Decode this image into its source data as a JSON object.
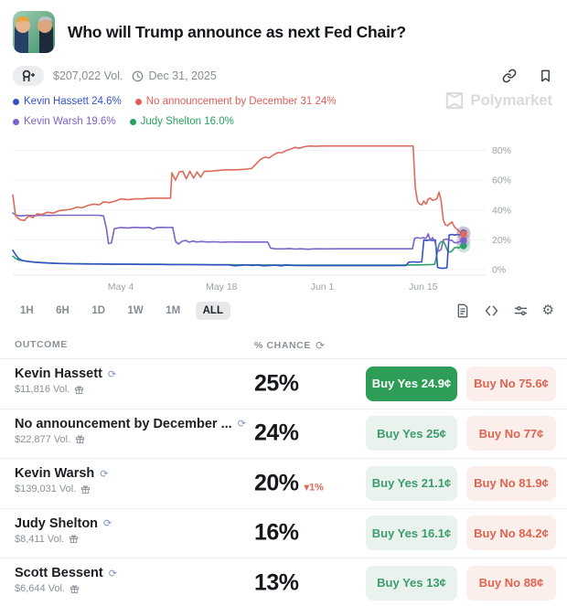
{
  "header": {
    "title": "Who will Trump announce as next Fed Chair?"
  },
  "meta": {
    "volume": "$207,022 Vol.",
    "end_date": "Dec 31, 2025"
  },
  "watermark": {
    "text": "Polymarket"
  },
  "legend": [
    {
      "label": "Kevin Hassett 24.6%",
      "color": "#3452c5"
    },
    {
      "label": "No announcement by December 31 24%",
      "color": "#e25d55"
    },
    {
      "label": "Kevin Warsh 19.6%",
      "color": "#7b63c9"
    },
    {
      "label": "Judy Shelton 16.0%",
      "color": "#27a15e"
    }
  ],
  "timeframes": {
    "options": [
      "1H",
      "6H",
      "1D",
      "1W",
      "1M",
      "ALL"
    ],
    "selected": "ALL"
  },
  "chart_data": {
    "type": "line",
    "title": "",
    "xlabel": "",
    "ylabel": "% chance",
    "x_axis": {
      "ticks": [
        "May 4",
        "May 18",
        "Jun 1",
        "Jun 15"
      ],
      "tick_days": [
        15,
        29,
        43,
        57
      ],
      "domain_days": [
        0,
        63
      ]
    },
    "y_axis": {
      "ticks": [
        "0%",
        "20%",
        "40%",
        "60%",
        "80%"
      ],
      "tick_values": [
        0,
        20,
        40,
        60,
        80
      ],
      "range": [
        0,
        88
      ]
    },
    "grid": true,
    "legend_position": "top-left",
    "series": [
      {
        "name": "Judy Shelton",
        "color": "#2e9e6b",
        "end_value": 16.0,
        "points": [
          [
            0,
            9
          ],
          [
            0.4,
            7.5
          ],
          [
            0.8,
            6.5
          ],
          [
            1.4,
            6
          ],
          [
            2.2,
            5.4
          ],
          [
            3,
            5
          ],
          [
            4,
            4.8
          ],
          [
            5,
            4.5
          ],
          [
            6,
            4.3
          ],
          [
            8,
            4
          ],
          [
            10,
            3.9
          ],
          [
            12,
            3.8
          ],
          [
            14,
            3.7
          ],
          [
            16,
            3.7
          ],
          [
            18,
            3.6
          ],
          [
            20,
            3.6
          ],
          [
            22,
            3.5
          ],
          [
            24,
            3.5
          ],
          [
            26,
            3.4
          ],
          [
            28,
            3.3
          ],
          [
            30,
            3.3
          ],
          [
            32,
            3.2
          ],
          [
            34,
            3.2
          ],
          [
            36,
            3.1
          ],
          [
            38,
            3.1
          ],
          [
            40,
            3
          ],
          [
            42,
            3
          ],
          [
            44,
            3
          ],
          [
            46,
            3
          ],
          [
            48,
            3
          ],
          [
            50,
            3
          ],
          [
            52,
            3
          ],
          [
            54,
            3
          ],
          [
            55.5,
            3.2
          ],
          [
            56.5,
            3.2
          ],
          [
            57.5,
            3.3
          ],
          [
            58.2,
            3.4
          ],
          [
            58.6,
            3.6
          ],
          [
            58.9,
            10
          ],
          [
            59.2,
            17
          ],
          [
            59.5,
            18.8
          ],
          [
            59.8,
            19
          ],
          [
            60.1,
            16
          ],
          [
            60.4,
            12.5
          ],
          [
            60.7,
            11.8
          ],
          [
            61,
            12.5
          ],
          [
            61.3,
            14.5
          ],
          [
            61.6,
            15
          ],
          [
            61.9,
            14.6
          ],
          [
            62.2,
            15.2
          ],
          [
            62.4,
            15.6
          ],
          [
            62.6,
            16
          ]
        ]
      },
      {
        "name": "Kevin Hassett",
        "color": "#3452c5",
        "end_value": 24.6,
        "points": [
          [
            0,
            13
          ],
          [
            0.4,
            10
          ],
          [
            0.8,
            7.5
          ],
          [
            1.4,
            6
          ],
          [
            2.2,
            5.5
          ],
          [
            3,
            5
          ],
          [
            4,
            4.6
          ],
          [
            5,
            4.4
          ],
          [
            6,
            4.2
          ],
          [
            8,
            4
          ],
          [
            10,
            3.8
          ],
          [
            12,
            3.8
          ],
          [
            14,
            3.6
          ],
          [
            16,
            3.6
          ],
          [
            18,
            3.5
          ],
          [
            20,
            3.5
          ],
          [
            22,
            3.4
          ],
          [
            24,
            3.4
          ],
          [
            26,
            3.3
          ],
          [
            28,
            3.2
          ],
          [
            30,
            3.2
          ],
          [
            30.8,
            2.6
          ],
          [
            31.6,
            2.9
          ],
          [
            32.4,
            3.2
          ],
          [
            33.2,
            2.8
          ],
          [
            34,
            3.1
          ],
          [
            34.8,
            2.6
          ],
          [
            35.6,
            2.7
          ],
          [
            36.4,
            3
          ],
          [
            37.2,
            2.6
          ],
          [
            38,
            3
          ],
          [
            39,
            2.8
          ],
          [
            41,
            2.7
          ],
          [
            43,
            2.7
          ],
          [
            45,
            2.7
          ],
          [
            47,
            2.7
          ],
          [
            49,
            2.7
          ],
          [
            51,
            2.7
          ],
          [
            53,
            2.7
          ],
          [
            54.6,
            2.8
          ],
          [
            55,
            5
          ],
          [
            55.6,
            5.2
          ],
          [
            56.2,
            5
          ],
          [
            56.8,
            5.2
          ],
          [
            57.1,
            20
          ],
          [
            57.5,
            19.5
          ],
          [
            57.9,
            20
          ],
          [
            58.3,
            19.6
          ],
          [
            58.7,
            19.9
          ],
          [
            59,
            1.5
          ],
          [
            59.4,
            1
          ],
          [
            59.9,
            1
          ],
          [
            60.3,
            1.3
          ],
          [
            60.6,
            23.2
          ],
          [
            61,
            23.6
          ],
          [
            61.4,
            23.2
          ],
          [
            61.8,
            23.6
          ],
          [
            62.2,
            23.4
          ],
          [
            62.6,
            24.6
          ]
        ]
      },
      {
        "name": "Kevin Warsh",
        "color": "#7b63c9",
        "end_value": 19.6,
        "points": [
          [
            0,
            38
          ],
          [
            0.5,
            36.5
          ],
          [
            1.2,
            36
          ],
          [
            2,
            36.5
          ],
          [
            3,
            36.3
          ],
          [
            4,
            36.5
          ],
          [
            5,
            36.4
          ],
          [
            6,
            36.5
          ],
          [
            7.5,
            36.5
          ],
          [
            9,
            36.5
          ],
          [
            10.5,
            36.5
          ],
          [
            12,
            36.5
          ],
          [
            12.6,
            36
          ],
          [
            13,
            28
          ],
          [
            13.3,
            17.5
          ],
          [
            13.7,
            18
          ],
          [
            14.1,
            27.5
          ],
          [
            15,
            28.3
          ],
          [
            16,
            28
          ],
          [
            17,
            28.4
          ],
          [
            18,
            28.1
          ],
          [
            19,
            28.3
          ],
          [
            19.5,
            27.2
          ],
          [
            20,
            28.3
          ],
          [
            21,
            28.4
          ],
          [
            21.6,
            28.2
          ],
          [
            22.2,
            28.4
          ],
          [
            22.6,
            19
          ],
          [
            23,
            17.2
          ],
          [
            23.5,
            19
          ],
          [
            24,
            19.6
          ],
          [
            24.5,
            18.4
          ],
          [
            25,
            19.2
          ],
          [
            25.6,
            18.5
          ],
          [
            26.2,
            18.9
          ],
          [
            27,
            18.5
          ],
          [
            28,
            18.7
          ],
          [
            29,
            18.4
          ],
          [
            30,
            18.6
          ],
          [
            31.5,
            18.5
          ],
          [
            33,
            18.5
          ],
          [
            34.5,
            18.5
          ],
          [
            35.4,
            18.5
          ],
          [
            35.8,
            14.5
          ],
          [
            36.4,
            14
          ],
          [
            37.5,
            13.9
          ],
          [
            38.5,
            14.2
          ],
          [
            39.2,
            13.8
          ],
          [
            40,
            14
          ],
          [
            41,
            13.7
          ],
          [
            42,
            14
          ],
          [
            43.5,
            13.9
          ],
          [
            45,
            14
          ],
          [
            47,
            14
          ],
          [
            49,
            14
          ],
          [
            51,
            14
          ],
          [
            53,
            14
          ],
          [
            55,
            14
          ],
          [
            55.5,
            14
          ],
          [
            55.8,
            21
          ],
          [
            56.2,
            21.5
          ],
          [
            56.6,
            21.1
          ],
          [
            57,
            21.5
          ],
          [
            57.4,
            21
          ],
          [
            57.7,
            24
          ],
          [
            58,
            19.5
          ],
          [
            58.3,
            21.5
          ],
          [
            58.6,
            19
          ],
          [
            58.9,
            13.5
          ],
          [
            59.2,
            12.5
          ],
          [
            59.5,
            13.5
          ],
          [
            59.8,
            20
          ],
          [
            60.2,
            20.5
          ],
          [
            60.6,
            20
          ],
          [
            61,
            19.5
          ],
          [
            61.3,
            18.2
          ],
          [
            61.6,
            18
          ],
          [
            61.9,
            18.5
          ],
          [
            62.2,
            19.2
          ],
          [
            62.6,
            19.6
          ]
        ]
      },
      {
        "name": "No announcement by December 31",
        "color": "#dd6a5c",
        "end_value": 24.0,
        "points": [
          [
            0,
            50
          ],
          [
            0.4,
            36
          ],
          [
            1,
            33.5
          ],
          [
            1.6,
            33
          ],
          [
            2.2,
            36
          ],
          [
            2.8,
            35
          ],
          [
            3.4,
            37.5
          ],
          [
            4,
            37
          ],
          [
            4.8,
            38.5
          ],
          [
            5.6,
            38
          ],
          [
            6.4,
            39.5
          ],
          [
            7.2,
            40
          ],
          [
            8,
            40.5
          ],
          [
            9,
            42
          ],
          [
            9.6,
            41.5
          ],
          [
            10.4,
            43
          ],
          [
            11.2,
            44
          ],
          [
            12,
            43.5
          ],
          [
            12.6,
            45.5
          ],
          [
            13.4,
            45
          ],
          [
            14.2,
            46
          ],
          [
            15,
            47.5
          ],
          [
            16,
            47
          ],
          [
            17,
            47.5
          ],
          [
            18,
            47.5
          ],
          [
            19,
            48
          ],
          [
            20,
            48
          ],
          [
            21,
            48
          ],
          [
            21.9,
            48
          ],
          [
            22.1,
            65
          ],
          [
            22.6,
            60
          ],
          [
            23.1,
            65.5
          ],
          [
            23.6,
            66
          ],
          [
            24.1,
            61
          ],
          [
            24.6,
            66
          ],
          [
            25.1,
            61.5
          ],
          [
            25.6,
            65.5
          ],
          [
            26.1,
            62
          ],
          [
            26.6,
            66
          ],
          [
            27.4,
            66
          ],
          [
            28.4,
            66.5
          ],
          [
            29.5,
            67
          ],
          [
            31,
            67
          ],
          [
            32.5,
            67.5
          ],
          [
            33.2,
            68
          ],
          [
            33.8,
            71
          ],
          [
            34.4,
            74
          ],
          [
            35,
            75.5
          ],
          [
            35.6,
            75
          ],
          [
            36.2,
            77
          ],
          [
            36.8,
            78.5
          ],
          [
            37.4,
            78.5
          ],
          [
            38,
            80
          ],
          [
            38.6,
            81
          ],
          [
            39.2,
            82
          ],
          [
            39.8,
            81.5
          ],
          [
            40.5,
            82.5
          ],
          [
            41.2,
            83
          ],
          [
            42,
            82.8
          ],
          [
            43,
            83
          ],
          [
            45,
            83
          ],
          [
            47,
            83
          ],
          [
            49,
            83
          ],
          [
            51,
            83
          ],
          [
            53,
            83
          ],
          [
            55,
            83
          ],
          [
            55.6,
            83
          ],
          [
            55.9,
            55
          ],
          [
            56.2,
            46
          ],
          [
            56.5,
            44
          ],
          [
            56.8,
            43.5
          ],
          [
            57.1,
            46
          ],
          [
            57.4,
            44
          ],
          [
            57.7,
            47.5
          ],
          [
            58,
            48
          ],
          [
            58.3,
            46.5
          ],
          [
            58.6,
            47
          ],
          [
            58.9,
            47.5
          ],
          [
            59.2,
            52
          ],
          [
            59.5,
            46
          ],
          [
            59.8,
            33
          ],
          [
            60.1,
            30
          ],
          [
            60.4,
            29.5
          ],
          [
            60.7,
            31
          ],
          [
            61,
            32
          ],
          [
            61.3,
            29
          ],
          [
            61.6,
            27.5
          ],
          [
            61.9,
            26
          ],
          [
            62.2,
            25
          ],
          [
            62.6,
            24
          ]
        ]
      }
    ]
  },
  "table": {
    "col_outcome": "OUTCOME",
    "col_chance": "% CHANCE",
    "rows": [
      {
        "name": "Kevin Hassett",
        "vol": "$11,816 Vol.",
        "chance": "25%",
        "change": "",
        "yes_label": "Buy Yes 24.9¢",
        "no_label": "Buy No 75.6¢",
        "yes_selected": true
      },
      {
        "name": "No announcement by December ...",
        "vol": "$22,877 Vol.",
        "chance": "24%",
        "change": "",
        "yes_label": "Buy Yes 25¢",
        "no_label": "Buy No 77¢",
        "yes_selected": false
      },
      {
        "name": "Kevin Warsh",
        "vol": "$139,031 Vol.",
        "chance": "20%",
        "change": "▾1%",
        "yes_label": "Buy Yes 21.1¢",
        "no_label": "Buy No 81.9¢",
        "yes_selected": false
      },
      {
        "name": "Judy Shelton",
        "vol": "$8,411 Vol.",
        "chance": "16%",
        "change": "",
        "yes_label": "Buy Yes 16.1¢",
        "no_label": "Buy No 84.2¢",
        "yes_selected": false
      },
      {
        "name": "Scott Bessent",
        "vol": "$6,644 Vol.",
        "chance": "13%",
        "change": "",
        "yes_label": "Buy Yes 13¢",
        "no_label": "Buy No 88¢",
        "yes_selected": false
      }
    ]
  }
}
